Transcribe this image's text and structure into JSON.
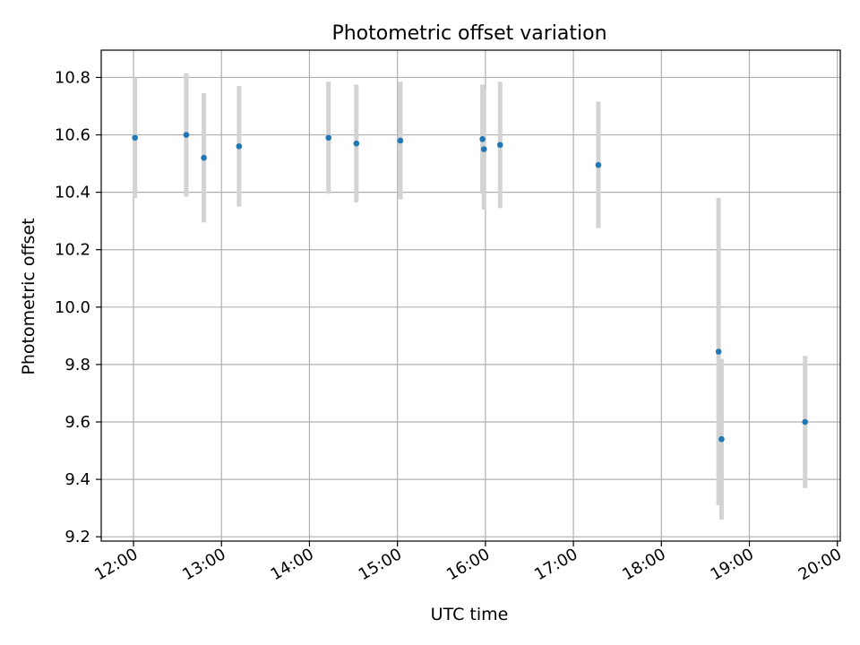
{
  "chart_data": {
    "type": "scatter",
    "title": "Photometric offset variation",
    "xlabel": "UTC time",
    "ylabel": "Photometric offset",
    "x_tick_labels": [
      "12:00",
      "13:00",
      "14:00",
      "15:00",
      "16:00",
      "17:00",
      "18:00",
      "19:00",
      "20:00"
    ],
    "y_tick_labels": [
      "9.2",
      "9.4",
      "9.6",
      "9.8",
      "10.0",
      "10.2",
      "10.4",
      "10.6",
      "10.8"
    ],
    "y_ticks": [
      9.2,
      9.4,
      9.6,
      9.8,
      10.0,
      10.2,
      10.4,
      10.6,
      10.8
    ],
    "xlim": [
      "11:38",
      "20:02"
    ],
    "ylim": [
      9.185,
      10.895
    ],
    "grid": true,
    "marker_color": "#1f77b4",
    "errorbar_color": "#d3d3d3",
    "series": [
      {
        "points": [
          {
            "x": "12:01",
            "y": 10.59,
            "err": 0.21
          },
          {
            "x": "12:36",
            "y": 10.6,
            "err": 0.215
          },
          {
            "x": "12:48",
            "y": 10.52,
            "err": 0.225
          },
          {
            "x": "13:12",
            "y": 10.56,
            "err": 0.21
          },
          {
            "x": "14:13",
            "y": 10.59,
            "err": 0.195
          },
          {
            "x": "14:32",
            "y": 10.57,
            "err": 0.205
          },
          {
            "x": "15:02",
            "y": 10.58,
            "err": 0.205
          },
          {
            "x": "15:58",
            "y": 10.585,
            "err": 0.19
          },
          {
            "x": "15:59",
            "y": 10.55,
            "err": 0.21
          },
          {
            "x": "16:10",
            "y": 10.565,
            "err": 0.22
          },
          {
            "x": "17:17",
            "y": 10.495,
            "err": 0.22
          },
          {
            "x": "18:39",
            "y": 9.845,
            "err": 0.535
          },
          {
            "x": "18:41",
            "y": 9.54,
            "err": 0.28
          },
          {
            "x": "19:38",
            "y": 9.6,
            "err": 0.23
          }
        ]
      }
    ]
  }
}
